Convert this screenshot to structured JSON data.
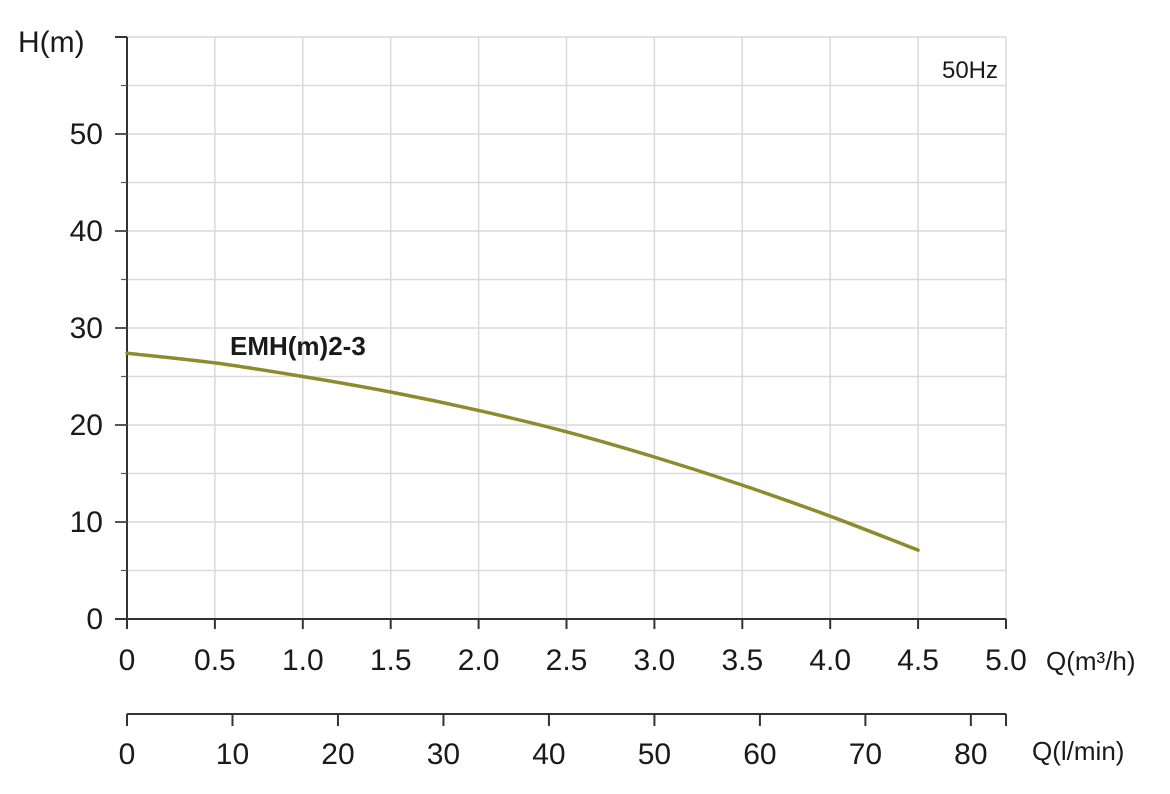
{
  "chart_data": {
    "type": "line",
    "frequency_label": "50Hz",
    "y_axis": {
      "label": "H(m)",
      "ylim": [
        0,
        60
      ],
      "ticks": [
        0,
        10,
        20,
        30,
        40,
        50
      ],
      "tick_labels": [
        "0",
        "10",
        "20",
        "30",
        "40",
        "50"
      ]
    },
    "x_axis": {
      "unit_label": "Q(m³/h)",
      "xlim": [
        0,
        5.0
      ],
      "ticks": [
        0,
        0.5,
        1.0,
        1.5,
        2.0,
        2.5,
        3.0,
        3.5,
        4.0,
        4.5,
        5.0
      ],
      "tick_labels": [
        "0",
        "0.5",
        "1.0",
        "1.5",
        "2.0",
        "2.5",
        "3.0",
        "3.5",
        "4.0",
        "4.5",
        "5.0"
      ]
    },
    "x_axis_secondary": {
      "unit_label": "Q(l/min)",
      "xlim": [
        0,
        83.33
      ],
      "ticks": [
        0,
        10,
        20,
        30,
        40,
        50,
        60,
        70,
        80
      ],
      "tick_labels": [
        "0",
        "10",
        "20",
        "30",
        "40",
        "50",
        "60",
        "70",
        "80"
      ]
    },
    "grid": true,
    "series": [
      {
        "name": "EMH(m)2-3",
        "color": "#8f8b2d",
        "x": [
          0,
          0.5,
          1.0,
          1.5,
          2.0,
          2.5,
          3.0,
          3.5,
          4.0,
          4.5
        ],
        "y": [
          27.4,
          26.4,
          25.0,
          23.4,
          21.5,
          19.3,
          16.7,
          13.8,
          10.6,
          7.1
        ]
      }
    ]
  }
}
